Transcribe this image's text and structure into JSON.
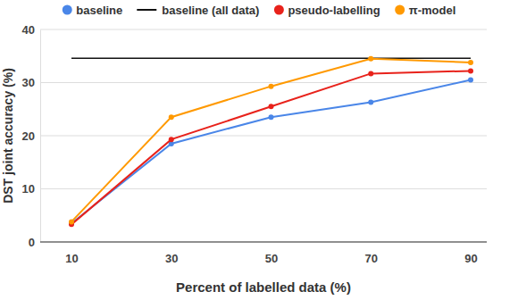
{
  "chart_data": {
    "type": "line",
    "x_label": "Percent of labelled data (%)",
    "y_label": "DST joint accuracy (%)",
    "categories": [
      "10",
      "30",
      "50",
      "70",
      "90"
    ],
    "series": [
      {
        "name": "baseline",
        "color": "#4a86e8",
        "marker": "circle",
        "values": [
          3.5,
          18.5,
          23.5,
          26.3,
          30.5
        ]
      },
      {
        "name": "baseline (all data)",
        "color": "#111111",
        "marker": "none",
        "values": [
          34.6,
          34.6,
          34.6,
          34.6,
          34.6
        ]
      },
      {
        "name": "pseudo-labelling",
        "color": "#e8221b",
        "marker": "circle",
        "values": [
          3.3,
          19.3,
          25.5,
          31.7,
          32.2
        ]
      },
      {
        "name": "π-model",
        "color": "#ff9900",
        "marker": "circle",
        "values": [
          3.8,
          23.5,
          29.3,
          34.5,
          33.8
        ]
      }
    ],
    "ylim": [
      0,
      40
    ],
    "yticks": [
      0,
      10,
      20,
      30,
      40
    ],
    "grid": true,
    "legend": "top"
  }
}
